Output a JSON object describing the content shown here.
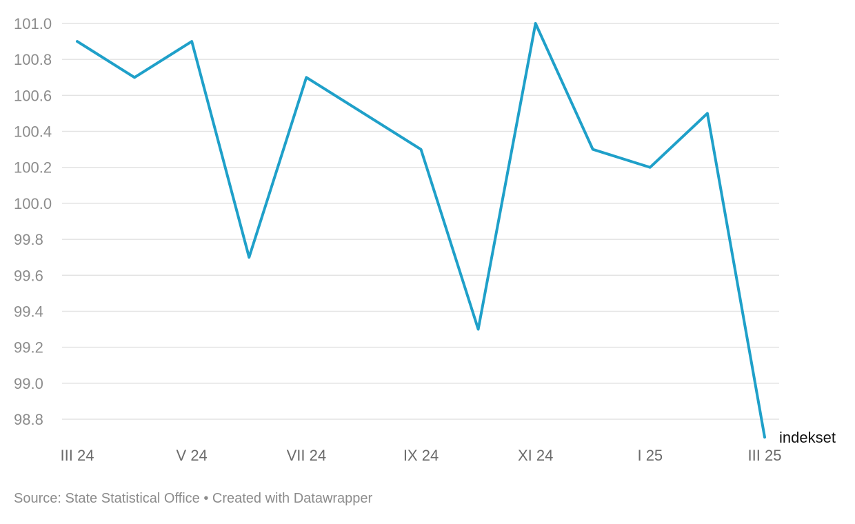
{
  "chart_data": {
    "type": "line",
    "title": "",
    "xlabel": "",
    "ylabel": "",
    "x": [
      "III 24",
      "IV 24",
      "V 24",
      "VI 24",
      "VII 24",
      "VIII 24",
      "IX 24",
      "X 24",
      "XI 24",
      "XII 24",
      "I 25",
      "II 25",
      "III 25"
    ],
    "x_tick_labels": [
      "III 24",
      "V 24",
      "VII 24",
      "IX 24",
      "XI 24",
      "I 25",
      "III 25"
    ],
    "y_ticks": [
      "101.0",
      "100.8",
      "100.6",
      "100.4",
      "100.2",
      "100.0",
      "99.8",
      "99.6",
      "99.4",
      "99.2",
      "99.0",
      "98.8"
    ],
    "ylim": [
      98.7,
      101.0
    ],
    "grid": true,
    "series": [
      {
        "name": "indekset",
        "color": "#1fa0c9",
        "values": [
          100.9,
          100.7,
          100.9,
          99.7,
          100.7,
          100.5,
          100.3,
          99.3,
          101.0,
          100.3,
          100.2,
          100.5,
          98.7
        ]
      }
    ]
  },
  "footer": {
    "text": "Source: State Statistical Office • Created with Datawrapper"
  }
}
